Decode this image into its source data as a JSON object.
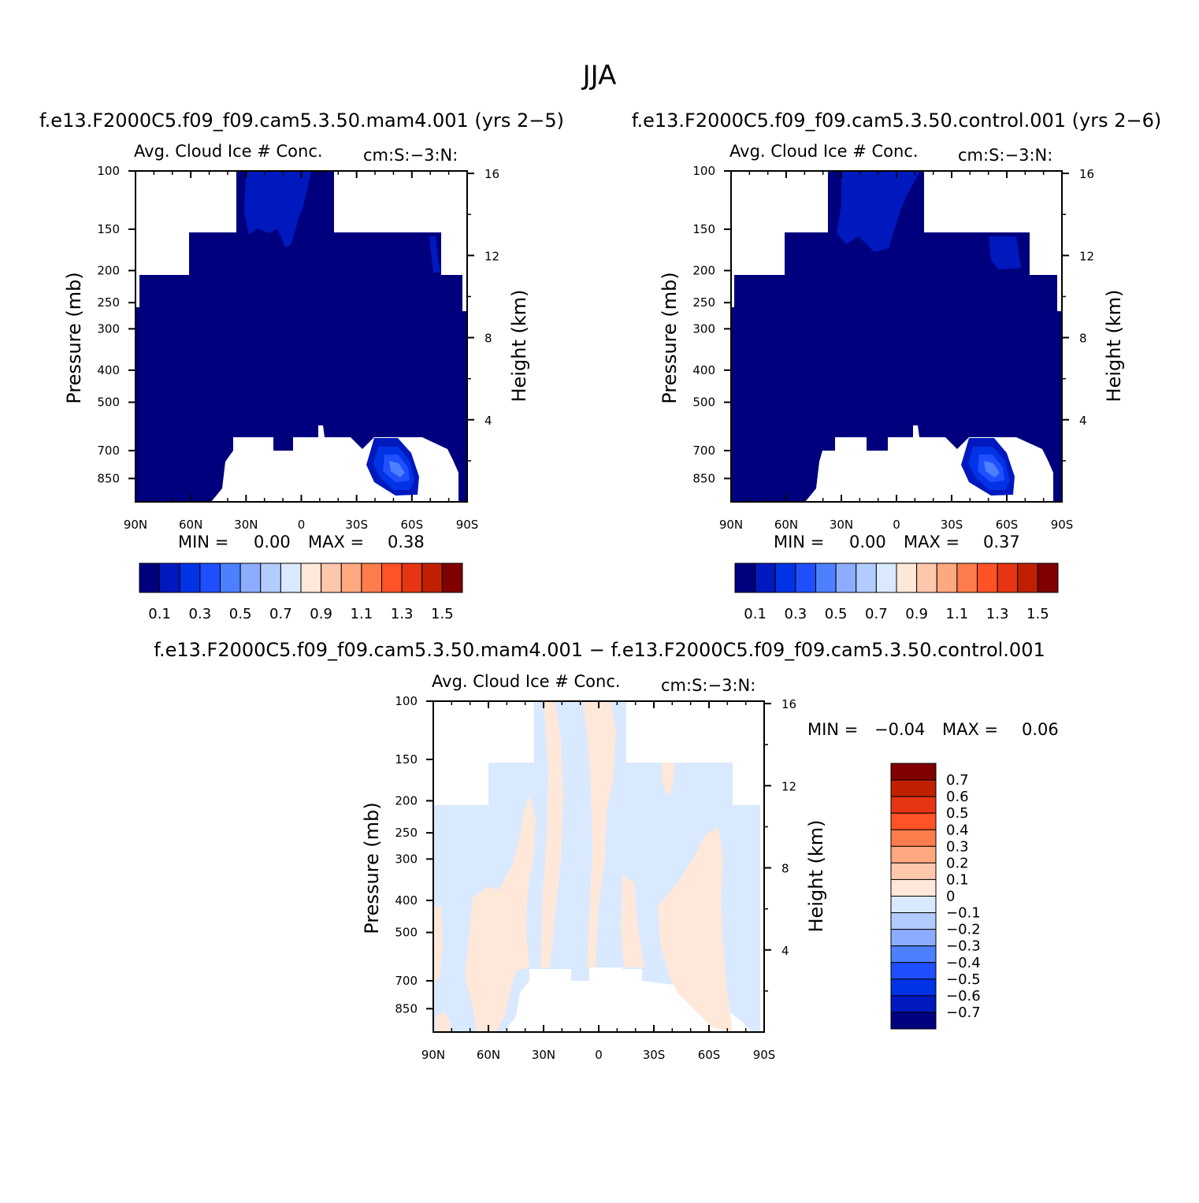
{
  "page_title": "JJA",
  "panels": {
    "top_left": {
      "case_title": "f.e13.F2000C5.f09_f09.cam5.3.50.mam4.001 (yrs 2−5)",
      "variable": "Avg. Cloud Ice # Conc.",
      "units": "cm:S:−3:N:",
      "min_label": "MIN =",
      "min_value": "0.00",
      "max_label": "MAX =",
      "max_value": "0.38"
    },
    "top_right": {
      "case_title": "f.e13.F2000C5.f09_f09.cam5.3.50.control.001 (yrs 2−6)",
      "variable": "Avg. Cloud Ice # Conc.",
      "units": "cm:S:−3:N:",
      "min_label": "MIN =",
      "min_value": "0.00",
      "max_label": "MAX =",
      "max_value": "0.37"
    },
    "bottom": {
      "case_title": "f.e13.F2000C5.f09_f09.cam5.3.50.mam4.001 − f.e13.F2000C5.f09_f09.cam5.3.50.control.001",
      "variable": "Avg. Cloud Ice # Conc.",
      "units": "cm:S:−3:N:",
      "min_label": "MIN =",
      "min_value": "−0.04",
      "max_label": "MAX =",
      "max_value": "0.06"
    }
  },
  "chart_data": [
    {
      "type": "heatmap",
      "panel": "top_left",
      "xlabel": "",
      "ylabel": "Pressure (mb)",
      "ylabel_right": "Height (km)",
      "x_ticks": [
        "90N",
        "60N",
        "30N",
        "0",
        "30S",
        "60S",
        "90S"
      ],
      "x_tick_values": [
        90,
        60,
        30,
        0,
        -30,
        -60,
        -90
      ],
      "y_ticks": [
        "100",
        "150",
        "200",
        "250",
        "300",
        "400",
        "500",
        "700",
        "850"
      ],
      "y_tick_values": [
        100,
        150,
        200,
        250,
        300,
        400,
        500,
        700,
        850
      ],
      "y_scale": "log",
      "ylim": [
        100,
        1000
      ],
      "right_ticks": [
        "16",
        "12",
        "8",
        "4"
      ],
      "right_tick_values": [
        16,
        12,
        8,
        4
      ],
      "colorbar": {
        "orientation": "horizontal",
        "levels": [
          "0.1",
          "0.3",
          "0.5",
          "0.7",
          "0.9",
          "1.1",
          "1.3",
          "1.5"
        ],
        "colors": [
          "#00007f",
          "#0019bf",
          "#0033e6",
          "#1f4fff",
          "#4d80ff",
          "#8cadff",
          "#b3ccff",
          "#d9e9ff",
          "#ffe8d9",
          "#ffc8ad",
          "#ffa880",
          "#ff7c4d",
          "#ff5226",
          "#e63512",
          "#bf2100",
          "#800000"
        ]
      },
      "max": 0.38,
      "min": 0.0
    },
    {
      "type": "heatmap",
      "panel": "top_right",
      "xlabel": "",
      "ylabel": "Pressure (mb)",
      "ylabel_right": "Height (km)",
      "x_ticks": [
        "90N",
        "60N",
        "30N",
        "0",
        "30S",
        "60S",
        "90S"
      ],
      "x_tick_values": [
        90,
        60,
        30,
        0,
        -30,
        -60,
        -90
      ],
      "y_ticks": [
        "100",
        "150",
        "200",
        "250",
        "300",
        "400",
        "500",
        "700",
        "850"
      ],
      "y_tick_values": [
        100,
        150,
        200,
        250,
        300,
        400,
        500,
        700,
        850
      ],
      "y_scale": "log",
      "ylim": [
        100,
        1000
      ],
      "right_ticks": [
        "16",
        "12",
        "8",
        "4"
      ],
      "right_tick_values": [
        16,
        12,
        8,
        4
      ],
      "colorbar": {
        "orientation": "horizontal",
        "levels": [
          "0.1",
          "0.3",
          "0.5",
          "0.7",
          "0.9",
          "1.1",
          "1.3",
          "1.5"
        ],
        "colors": [
          "#00007f",
          "#0019bf",
          "#0033e6",
          "#1f4fff",
          "#4d80ff",
          "#8cadff",
          "#b3ccff",
          "#d9e9ff",
          "#ffe8d9",
          "#ffc8ad",
          "#ffa880",
          "#ff7c4d",
          "#ff5226",
          "#e63512",
          "#bf2100",
          "#800000"
        ]
      },
      "max": 0.37,
      "min": 0.0
    },
    {
      "type": "heatmap",
      "panel": "bottom",
      "xlabel": "",
      "ylabel": "Pressure (mb)",
      "ylabel_right": "Height (km)",
      "x_ticks": [
        "90N",
        "60N",
        "30N",
        "0",
        "30S",
        "60S",
        "90S"
      ],
      "x_tick_values": [
        90,
        60,
        30,
        0,
        -30,
        -60,
        -90
      ],
      "y_ticks": [
        "100",
        "150",
        "200",
        "250",
        "300",
        "400",
        "500",
        "700",
        "850"
      ],
      "y_tick_values": [
        100,
        150,
        200,
        250,
        300,
        400,
        500,
        700,
        850
      ],
      "y_scale": "log",
      "ylim": [
        100,
        1000
      ],
      "right_ticks": [
        "16",
        "12",
        "8",
        "4"
      ],
      "right_tick_values": [
        16,
        12,
        8,
        4
      ],
      "colorbar": {
        "orientation": "vertical",
        "levels": [
          "0.7",
          "0.6",
          "0.5",
          "0.4",
          "0.3",
          "0.2",
          "0.1",
          "0",
          "−0.1",
          "−0.2",
          "−0.3",
          "−0.4",
          "−0.5",
          "−0.6",
          "−0.7"
        ],
        "colors": [
          "#800000",
          "#bf2100",
          "#e63512",
          "#ff5226",
          "#ff7c4d",
          "#ffa880",
          "#ffc8ad",
          "#ffe8d9",
          "#d9e9ff",
          "#b3ccff",
          "#8cadff",
          "#4d80ff",
          "#1f4fff",
          "#0033e6",
          "#0019bf",
          "#00007f"
        ]
      },
      "max": 0.06,
      "min": -0.04
    }
  ]
}
